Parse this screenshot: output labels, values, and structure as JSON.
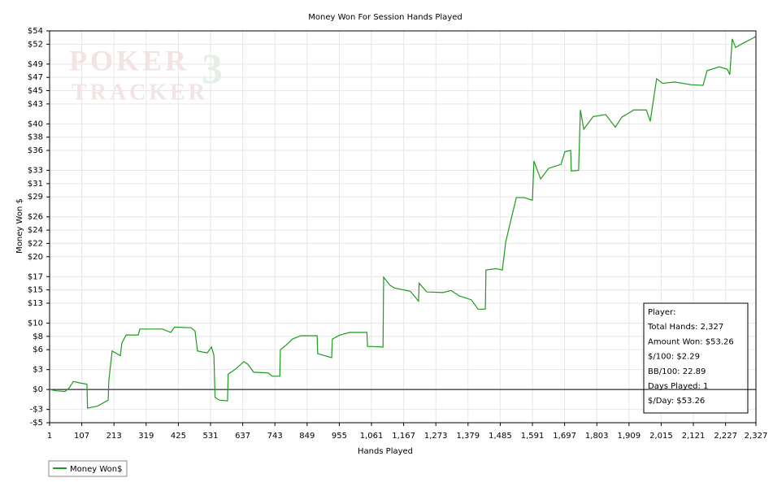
{
  "chart_data": {
    "type": "line",
    "title": "Money Won For Session Hands Played",
    "x_label": "Hands Played",
    "y_label": "Money Won $",
    "watermark": [
      "POKER",
      "TRACKER",
      "3"
    ],
    "xlim": [
      1,
      2327
    ],
    "ylim": [
      -5,
      54
    ],
    "grid": true,
    "zero_line": true,
    "xticks": [
      1,
      107,
      213,
      319,
      425,
      531,
      637,
      743,
      849,
      955,
      {
        "value": 1061,
        "label": "1,061"
      },
      {
        "value": 1167,
        "label": "1,167"
      },
      {
        "value": 1273,
        "label": "1,273"
      },
      {
        "value": 1379,
        "label": "1,379"
      },
      {
        "value": 1485,
        "label": "1,485"
      },
      {
        "value": 1591,
        "label": "1,591"
      },
      {
        "value": 1697,
        "label": "1,697"
      },
      {
        "value": 1803,
        "label": "1,803"
      },
      {
        "value": 1909,
        "label": "1,909"
      },
      {
        "value": 2015,
        "label": "2,015"
      },
      {
        "value": 2121,
        "label": "2,121"
      },
      {
        "value": 2227,
        "label": "2,227"
      },
      {
        "value": 2327,
        "label": "2,327"
      }
    ],
    "yticks": [
      {
        "value": 54,
        "label": "$54"
      },
      {
        "value": 52,
        "label": "$52"
      },
      {
        "value": 49,
        "label": "$49"
      },
      {
        "value": 47,
        "label": "$47"
      },
      {
        "value": 45,
        "label": "$45"
      },
      {
        "value": 43,
        "label": "$43"
      },
      {
        "value": 40,
        "label": "$40"
      },
      {
        "value": 38,
        "label": "$38"
      },
      {
        "value": 36,
        "label": "$36"
      },
      {
        "value": 33,
        "label": "$33"
      },
      {
        "value": 31,
        "label": "$31"
      },
      {
        "value": 29,
        "label": "$29"
      },
      {
        "value": 26,
        "label": "$26"
      },
      {
        "value": 24,
        "label": "$24"
      },
      {
        "value": 22,
        "label": "$22"
      },
      {
        "value": 20,
        "label": "$20"
      },
      {
        "value": 17,
        "label": "$17"
      },
      {
        "value": 15,
        "label": "$15"
      },
      {
        "value": 13,
        "label": "$13"
      },
      {
        "value": 10,
        "label": "$10"
      },
      {
        "value": 8,
        "label": "$8"
      },
      {
        "value": 6,
        "label": "$6"
      },
      {
        "value": 3,
        "label": "$3"
      },
      {
        "value": 0,
        "label": "$0"
      },
      {
        "value": -3,
        "label": "-$3"
      },
      {
        "value": -5,
        "label": "-$5"
      }
    ],
    "x": [
      1,
      25,
      52,
      65,
      79,
      100,
      124,
      126,
      159,
      186,
      194,
      196,
      207,
      234,
      239,
      253,
      293,
      298,
      373,
      400,
      413,
      467,
      480,
      488,
      520,
      534,
      542,
      546,
      560,
      587,
      589,
      614,
      641,
      654,
      673,
      721,
      734,
      759,
      761,
      780,
      801,
      828,
      882,
      884,
      930,
      932,
      957,
      989,
      1046,
      1048,
      1099,
      1101,
      1122,
      1136,
      1189,
      1216,
      1218,
      1243,
      1296,
      1323,
      1350,
      1390,
      1412,
      1436,
      1438,
      1471,
      1492,
      1503,
      1519,
      1538,
      1564,
      1591,
      1596,
      1618,
      1644,
      1685,
      1698,
      1717,
      1719,
      1743,
      1749,
      1760,
      1791,
      1832,
      1864,
      1885,
      1925,
      1966,
      1979,
      2000,
      2019,
      2059,
      2113,
      2153,
      2166,
      2207,
      2233,
      2241,
      2249,
      2260,
      2287,
      2321,
      2327
    ],
    "series": [
      {
        "name": "Money Won$",
        "color": "#1e9a1e",
        "values": [
          0,
          -0.2,
          -0.3,
          0.2,
          1.2,
          1.0,
          0.8,
          -2.8,
          -2.5,
          -1.8,
          -1.6,
          1.3,
          5.8,
          5.1,
          7.0,
          8.2,
          8.2,
          9.1,
          9.1,
          8.6,
          9.4,
          9.3,
          8.8,
          5.8,
          5.5,
          6.4,
          5.2,
          -1.2,
          -1.6,
          -1.7,
          2.3,
          3.1,
          4.2,
          3.8,
          2.6,
          2.5,
          2.0,
          2.0,
          6.0,
          6.7,
          7.6,
          8.1,
          8.1,
          5.4,
          4.8,
          7.6,
          8.2,
          8.6,
          8.6,
          6.5,
          6.4,
          16.9,
          15.7,
          15.3,
          14.8,
          13.3,
          16.0,
          14.7,
          14.6,
          14.9,
          14.1,
          13.5,
          12.1,
          12.1,
          18.0,
          18.2,
          18.0,
          22.2,
          25.3,
          28.9,
          28.9,
          28.5,
          34.4,
          31.7,
          33.3,
          33.9,
          35.8,
          36.0,
          32.9,
          33.0,
          42.1,
          39.2,
          41.1,
          41.4,
          39.5,
          41.0,
          42.1,
          42.1,
          40.4,
          46.8,
          46.1,
          46.3,
          45.9,
          45.8,
          48.0,
          48.6,
          48.2,
          47.4,
          52.8,
          51.5,
          52.2,
          53.0,
          53.26
        ]
      }
    ],
    "stats_box": [
      "Player:",
      "Total Hands: 2,327",
      "Amount Won: $53.26",
      "$/100: $2.29",
      "BB/100: 22.89",
      "Days Played: 1",
      "$/Day: $53.26"
    ]
  }
}
